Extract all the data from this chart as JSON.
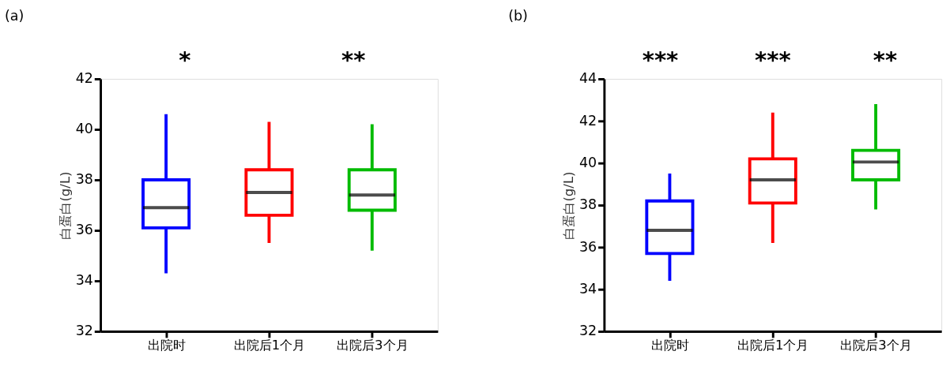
{
  "chart_data": [
    {
      "type": "box",
      "title": "(a)",
      "ylabel": "白蛋白(g/L)",
      "categories": [
        "出院时",
        "出院后1个月",
        "出院后3个月"
      ],
      "colors": [
        "#0000ff",
        "#ff0000",
        "#00bb00"
      ],
      "boxes": [
        {
          "low": 34.3,
          "q1": 36.1,
          "median": 36.9,
          "q3": 38.0,
          "high": 40.6
        },
        {
          "low": 35.5,
          "q1": 36.6,
          "median": 37.5,
          "q3": 38.4,
          "high": 40.3
        },
        {
          "low": 35.2,
          "q1": 36.8,
          "median": 37.4,
          "q3": 38.4,
          "high": 40.2
        }
      ],
      "ylim": [
        32,
        42
      ],
      "yticks": [
        32,
        34,
        36,
        38,
        40,
        42
      ],
      "grid": false,
      "annotations": [
        "*",
        "**"
      ]
    },
    {
      "type": "box",
      "title": "(b)",
      "ylabel": "白蛋白(g/L)",
      "categories": [
        "出院时",
        "出院后1个月",
        "出院后3个月"
      ],
      "colors": [
        "#0000ff",
        "#ff0000",
        "#00bb00"
      ],
      "boxes": [
        {
          "low": 34.4,
          "q1": 35.7,
          "median": 36.8,
          "q3": 38.2,
          "high": 39.5
        },
        {
          "low": 36.2,
          "q1": 38.1,
          "median": 39.2,
          "q3": 40.2,
          "high": 42.4
        },
        {
          "low": 37.8,
          "q1": 39.2,
          "median": 40.05,
          "q3": 40.6,
          "high": 42.8
        }
      ],
      "ylim": [
        32,
        44
      ],
      "yticks": [
        32,
        34,
        36,
        38,
        40,
        42,
        44
      ],
      "grid": false,
      "annotations": [
        "***",
        "***",
        "**"
      ]
    }
  ]
}
